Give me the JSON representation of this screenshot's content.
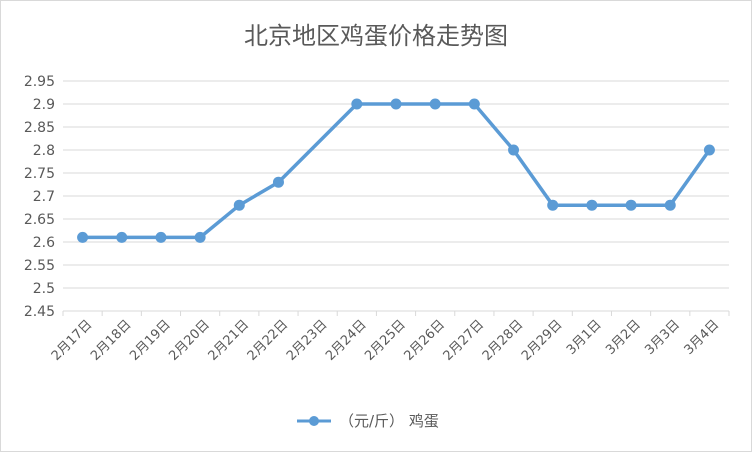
{
  "chart_data": {
    "type": "line",
    "title": "北京地区鸡蛋价格走势图",
    "xlabel": "",
    "ylabel": "",
    "categories": [
      "2月17日",
      "2月18日",
      "2月19日",
      "2月20日",
      "2月21日",
      "2月22日",
      "2月23日",
      "2月24日",
      "2月25日",
      "2月26日",
      "2月27日",
      "2月28日",
      "2月29日",
      "3月1日",
      "3月2日",
      "3月3日",
      "3月4日"
    ],
    "series": [
      {
        "name": "（元/斤） 鸡蛋",
        "values": [
          2.61,
          2.61,
          2.61,
          2.61,
          2.68,
          2.73,
          null,
          2.9,
          2.9,
          2.9,
          2.9,
          2.8,
          2.68,
          2.68,
          2.68,
          2.68,
          2.8
        ]
      }
    ],
    "ylim": [
      2.45,
      2.95
    ],
    "yticks": [
      "2.95",
      "2.9",
      "2.85",
      "2.8",
      "2.75",
      "2.7",
      "2.65",
      "2.6",
      "2.55",
      "2.5",
      "2.45"
    ],
    "grid": true,
    "legend": "bottom",
    "colors": {
      "series": "#5b9bd5",
      "grid": "#d9d9d9",
      "text": "#595959"
    }
  }
}
